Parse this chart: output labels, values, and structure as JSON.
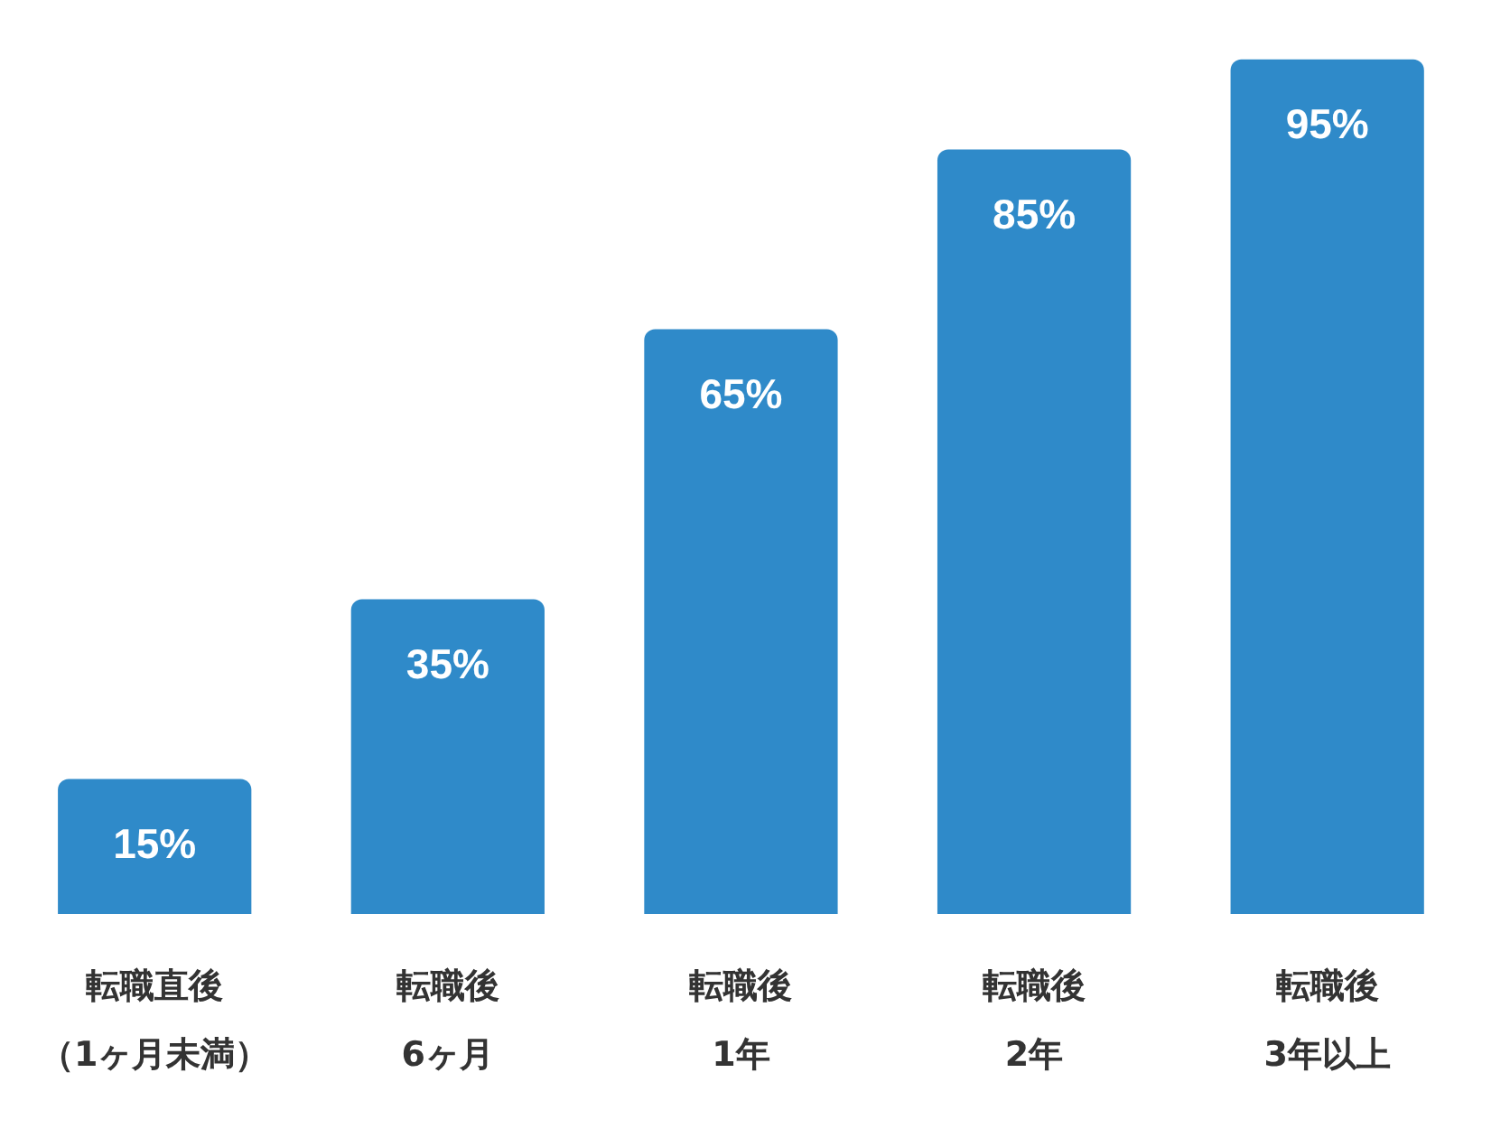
{
  "chart_data": {
    "type": "bar",
    "categories": [
      "転職直後（1ヶ月未満）",
      "転職後6ヶ月",
      "転職後1年",
      "転職後2年",
      "転職後3年以上"
    ],
    "values": [
      15,
      35,
      65,
      85,
      95
    ],
    "value_labels": [
      "15%",
      "35%",
      "65%",
      "85%",
      "95%"
    ],
    "color": "#2f8ac9",
    "grid": false,
    "legend": false
  }
}
